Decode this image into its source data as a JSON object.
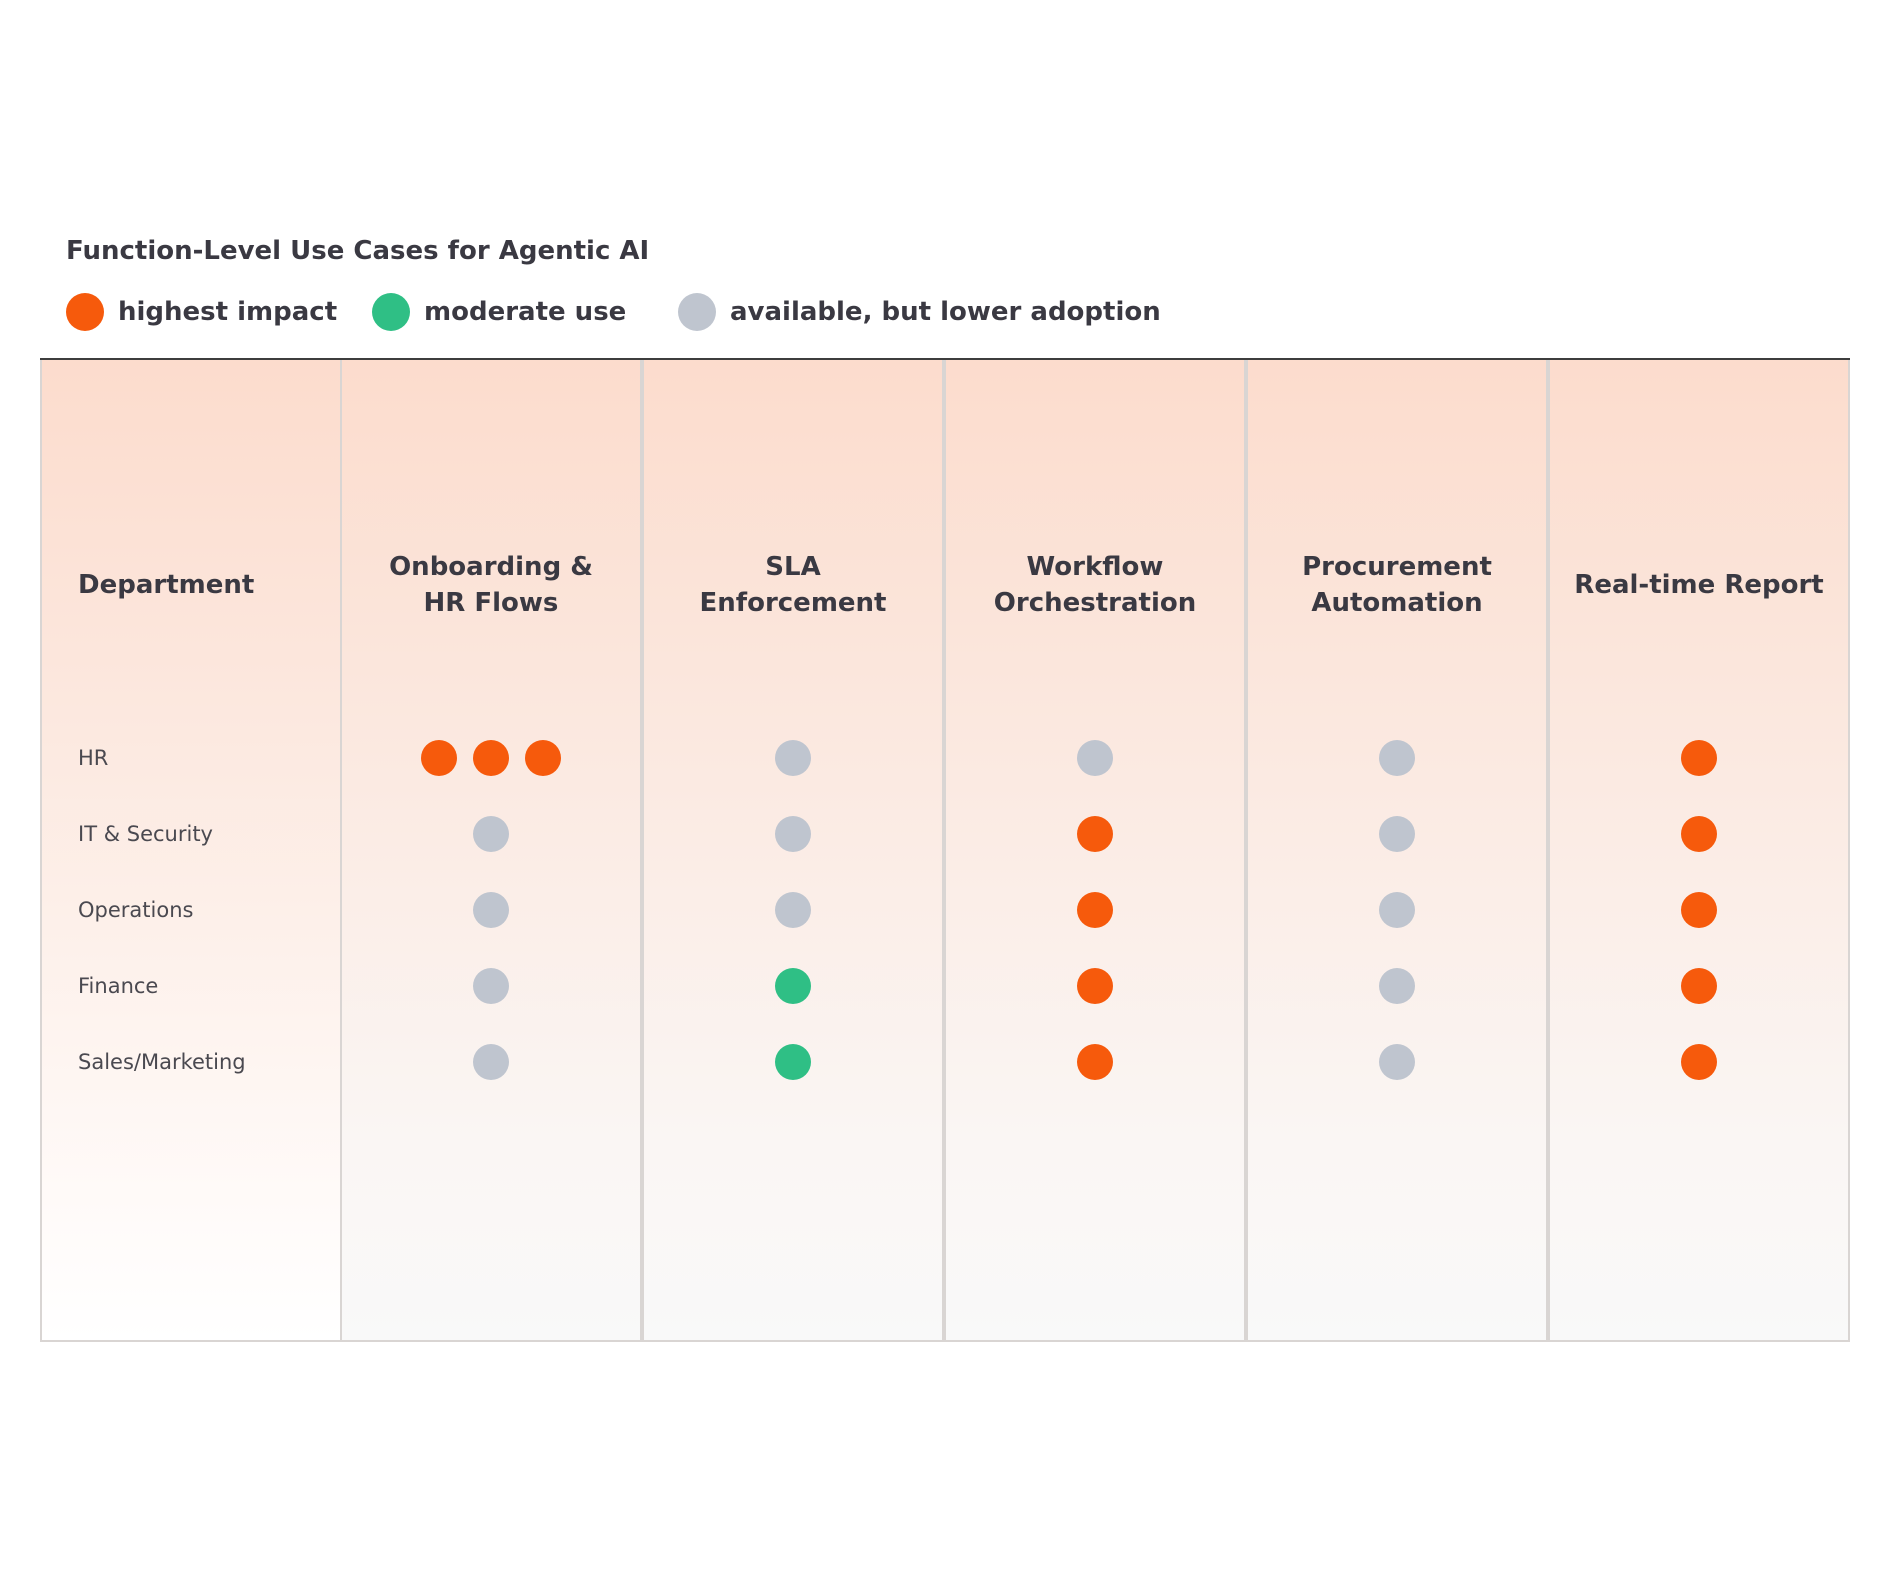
{
  "title": "Function-Level Use Cases for Agentic AI",
  "legend": [
    {
      "key": "high",
      "label": "highest impact",
      "color": "#f65a0c"
    },
    {
      "key": "moderate",
      "label": "moderate use",
      "color": "#2fbf85"
    },
    {
      "key": "low",
      "label": "available, but lower adoption",
      "color": "#bfc5cf"
    }
  ],
  "table": {
    "first_header": "Department",
    "columns": [
      "Onboarding &\nHR Flows",
      "SLA\nEnforcement",
      "Workflow\nOrchestration",
      "Procurement\nAutomation",
      "Real-time Report"
    ],
    "rows": [
      {
        "label": "HR",
        "cells": [
          [
            "high",
            "high",
            "high"
          ],
          [
            "low"
          ],
          [
            "low"
          ],
          [
            "low"
          ],
          [
            "high"
          ]
        ]
      },
      {
        "label": "IT & Security",
        "cells": [
          [
            "low"
          ],
          [
            "low"
          ],
          [
            "high"
          ],
          [
            "low"
          ],
          [
            "high"
          ]
        ]
      },
      {
        "label": "Operations",
        "cells": [
          [
            "low"
          ],
          [
            "low"
          ],
          [
            "high"
          ],
          [
            "low"
          ],
          [
            "high"
          ]
        ]
      },
      {
        "label": "Finance",
        "cells": [
          [
            "low"
          ],
          [
            "moderate"
          ],
          [
            "high"
          ],
          [
            "low"
          ],
          [
            "high"
          ]
        ]
      },
      {
        "label": "Sales/Marketing",
        "cells": [
          [
            "low"
          ],
          [
            "moderate"
          ],
          [
            "high"
          ],
          [
            "low"
          ],
          [
            "high"
          ]
        ]
      }
    ]
  }
}
